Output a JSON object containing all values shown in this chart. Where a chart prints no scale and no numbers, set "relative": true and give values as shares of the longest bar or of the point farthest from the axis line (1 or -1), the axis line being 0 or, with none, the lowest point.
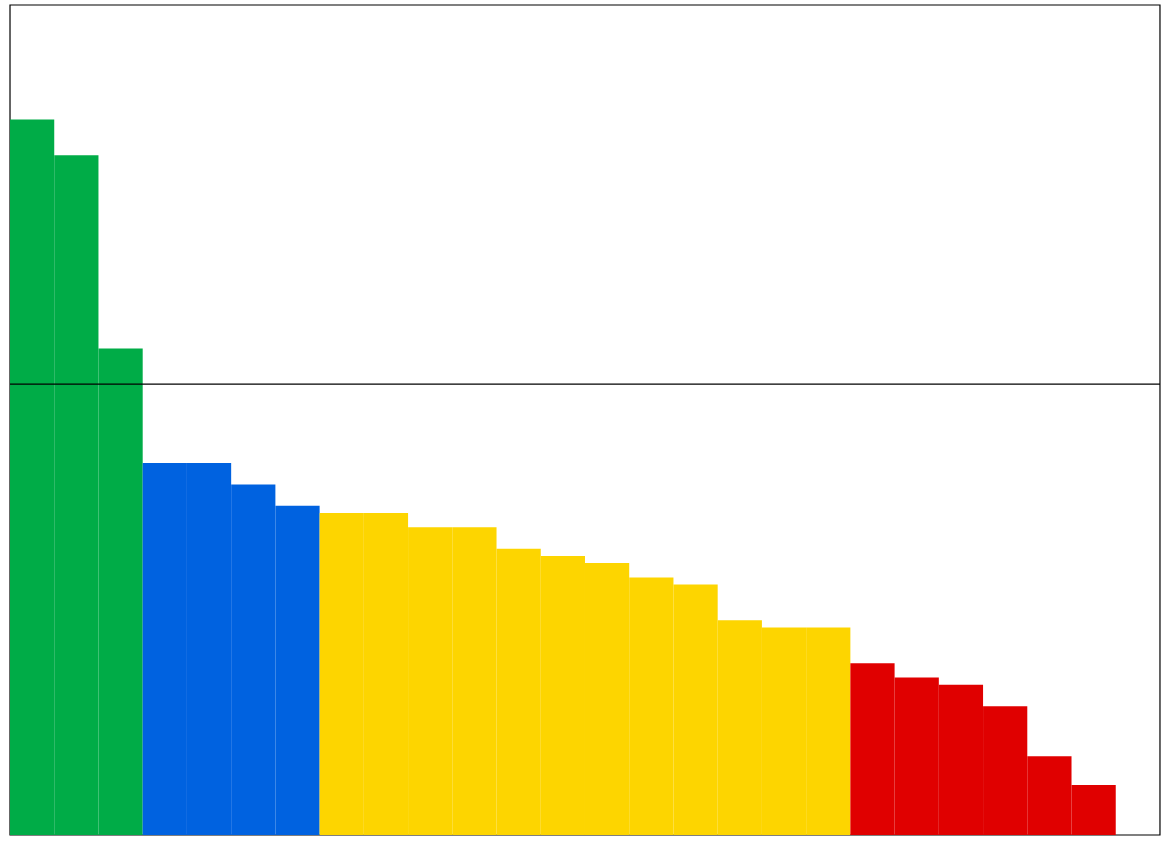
{
  "chart_data": {
    "type": "bar",
    "relative": true,
    "categories": [
      null,
      null,
      null,
      null,
      null,
      null,
      null,
      null,
      null,
      null,
      null,
      null,
      null,
      null,
      null,
      null,
      null,
      null,
      null,
      null,
      null,
      null,
      null,
      null,
      null
    ],
    "values": [
      1,
      0.95,
      0.68,
      0.52,
      0.52,
      0.49,
      0.46,
      0.45,
      0.45,
      0.43,
      0.43,
      0.4,
      0.39,
      0.38,
      0.36,
      0.35,
      0.3,
      0.29,
      0.29,
      0.24,
      0.22,
      0.21,
      0.18,
      0.11,
      0.07
    ],
    "colors": [
      "#00ac47",
      "#00ac47",
      "#00ac47",
      "#0062e0",
      "#0062e0",
      "#0062e0",
      "#0062e0",
      "#fdd500",
      "#fdd500",
      "#fdd500",
      "#fdd500",
      "#fdd500",
      "#fdd500",
      "#fdd500",
      "#fdd500",
      "#fdd500",
      "#fdd500",
      "#fdd500",
      "#fdd500",
      "#e00000",
      "#e00000",
      "#e00000",
      "#e00000",
      "#e00000",
      "#e00000"
    ],
    "ref_lines": [
      {
        "axis": "y",
        "value": 0.63,
        "color": "#000000"
      }
    ]
  }
}
